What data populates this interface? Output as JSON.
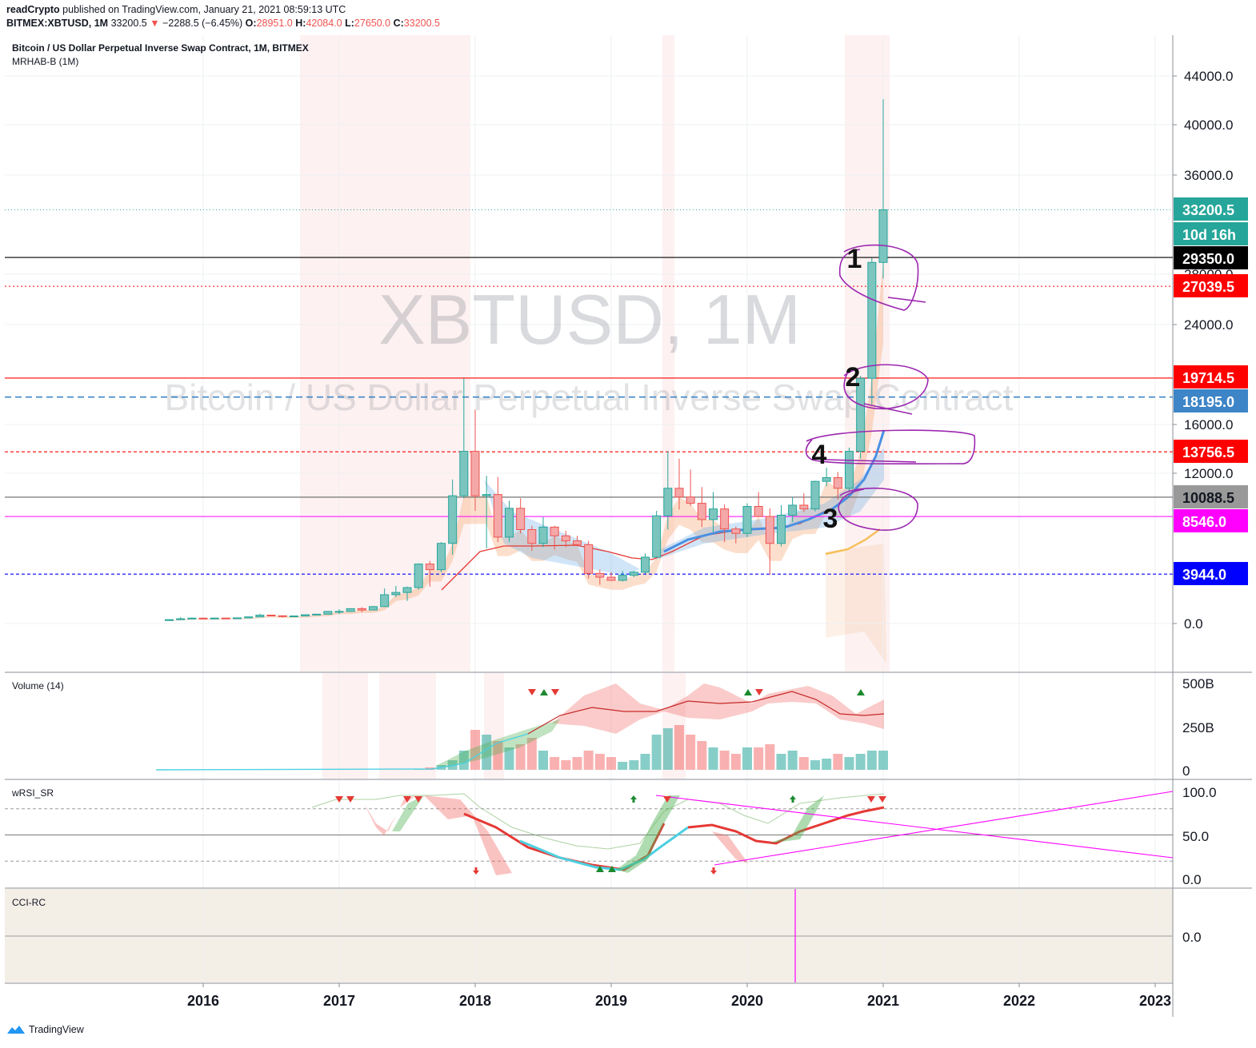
{
  "header": {
    "author": "readCrypto",
    "published_text": "published on TradingView.com, January 21, 2021 08:59:13 UTC",
    "symbol": "BITMEX:XBTUSD, 1M",
    "last": "33200.5",
    "change": "−2288.5 (−6.45%)",
    "o_label": "O:",
    "o": "28951.0",
    "h_label": "H:",
    "h": "42084.0",
    "l_label": "L:",
    "l": "27650.0",
    "c_label": "C:",
    "c": "33200.5"
  },
  "main_pane": {
    "title": "Bitcoin / US Dollar Perpetual Inverse Swap Contract, 1M, BITMEX",
    "indicator": "MRHAB-B (1M)",
    "watermark_big": "XBTUSD, 1M",
    "watermark_small": "Bitcoin / US Dollar Perpetual Inverse Swap Contract"
  },
  "price_axis": {
    "ticks": [
      "44000.0",
      "40000.0",
      "36000.0",
      "24000.0",
      "16000.0",
      "12000.0",
      "0.0"
    ],
    "hidden_tick": "28000.0"
  },
  "price_labels": [
    {
      "text": "33200.5",
      "color": "#26a69a",
      "text_color": "#ffffff"
    },
    {
      "text": "10d 16h",
      "color": "#26a69a",
      "text_color": "#ffffff"
    },
    {
      "text": "29350.0",
      "color": "#000000",
      "text_color": "#ffffff"
    },
    {
      "text": "27039.5",
      "color": "#ff0000",
      "text_color": "#ffffff"
    },
    {
      "text": "19714.5",
      "color": "#ff0000",
      "text_color": "#ffffff"
    },
    {
      "text": "18195.0",
      "color": "#3d85c6",
      "text_color": "#ffffff"
    },
    {
      "text": "13756.5",
      "color": "#ff0000",
      "text_color": "#ffffff"
    },
    {
      "text": "10088.5",
      "color": "#999999",
      "text_color": "#131722"
    },
    {
      "text": "8546.0",
      "color": "#ff00ff",
      "text_color": "#ffffff"
    },
    {
      "text": "3944.0",
      "color": "#0000ff",
      "text_color": "#ffffff"
    }
  ],
  "annotations": [
    "1",
    "2",
    "4",
    "3"
  ],
  "volume_pane": {
    "title": "Volume (14)",
    "ticks": [
      "500B",
      "250B",
      "0"
    ]
  },
  "rsi_pane": {
    "title": "wRSI_SR",
    "ticks": [
      "100.0",
      "50.0",
      "0.0"
    ]
  },
  "cci_pane": {
    "title": "CCI-RC",
    "ticks": [
      "0.0"
    ]
  },
  "time_axis": {
    "labels": [
      "2016",
      "2017",
      "2018",
      "2019",
      "2020",
      "2021",
      "2022",
      "2023"
    ]
  },
  "footer": {
    "brand": "TradingView"
  },
  "colors": {
    "up": "#26a69a",
    "down": "#ef5350",
    "up_fill": "#7cc5bf",
    "down_fill": "#f4a8a8",
    "annotation": "#9c27b0"
  },
  "chart_data": {
    "type": "candlestick",
    "title": "Bitcoin / US Dollar Perpetual Inverse Swap Contract, 1M, BITMEX",
    "symbol": "XBTUSD",
    "interval": "1M",
    "candles": [
      {
        "t": "2015-10",
        "o": 240,
        "h": 330,
        "l": 230,
        "c": 310
      },
      {
        "t": "2015-11",
        "o": 310,
        "h": 500,
        "l": 300,
        "c": 380
      },
      {
        "t": "2015-12",
        "o": 380,
        "h": 470,
        "l": 350,
        "c": 430
      },
      {
        "t": "2016-01",
        "o": 430,
        "h": 460,
        "l": 350,
        "c": 370
      },
      {
        "t": "2016-02",
        "o": 370,
        "h": 440,
        "l": 360,
        "c": 435
      },
      {
        "t": "2016-03",
        "o": 435,
        "h": 440,
        "l": 395,
        "c": 415
      },
      {
        "t": "2016-04",
        "o": 415,
        "h": 470,
        "l": 410,
        "c": 450
      },
      {
        "t": "2016-05",
        "o": 450,
        "h": 550,
        "l": 440,
        "c": 530
      },
      {
        "t": "2016-06",
        "o": 530,
        "h": 780,
        "l": 520,
        "c": 670
      },
      {
        "t": "2016-07",
        "o": 670,
        "h": 700,
        "l": 600,
        "c": 620
      },
      {
        "t": "2016-08",
        "o": 620,
        "h": 630,
        "l": 480,
        "c": 575
      },
      {
        "t": "2016-09",
        "o": 575,
        "h": 620,
        "l": 570,
        "c": 605
      },
      {
        "t": "2016-10",
        "o": 605,
        "h": 720,
        "l": 600,
        "c": 700
      },
      {
        "t": "2016-11",
        "o": 700,
        "h": 760,
        "l": 690,
        "c": 745
      },
      {
        "t": "2016-12",
        "o": 745,
        "h": 1000,
        "l": 740,
        "c": 965
      },
      {
        "t": "2017-01",
        "o": 965,
        "h": 1150,
        "l": 750,
        "c": 965
      },
      {
        "t": "2017-02",
        "o": 965,
        "h": 1200,
        "l": 920,
        "c": 1190
      },
      {
        "t": "2017-03",
        "o": 1190,
        "h": 1300,
        "l": 900,
        "c": 1080
      },
      {
        "t": "2017-04",
        "o": 1080,
        "h": 1400,
        "l": 1060,
        "c": 1350
      },
      {
        "t": "2017-05",
        "o": 1350,
        "h": 2800,
        "l": 1340,
        "c": 2300
      },
      {
        "t": "2017-06",
        "o": 2300,
        "h": 3000,
        "l": 2100,
        "c": 2480
      },
      {
        "t": "2017-07",
        "o": 2480,
        "h": 2950,
        "l": 1800,
        "c": 2870
      },
      {
        "t": "2017-08",
        "o": 2870,
        "h": 4800,
        "l": 2700,
        "c": 4750
      },
      {
        "t": "2017-09",
        "o": 4750,
        "h": 5000,
        "l": 2950,
        "c": 4300
      },
      {
        "t": "2017-10",
        "o": 4300,
        "h": 6500,
        "l": 4100,
        "c": 6400
      },
      {
        "t": "2017-11",
        "o": 6400,
        "h": 11500,
        "l": 5500,
        "c": 10200
      },
      {
        "t": "2017-12",
        "o": 10200,
        "h": 19700,
        "l": 10000,
        "c": 13800
      },
      {
        "t": "2018-01",
        "o": 13800,
        "h": 17200,
        "l": 9000,
        "c": 10200
      },
      {
        "t": "2018-02",
        "o": 10200,
        "h": 11800,
        "l": 6000,
        "c": 10300
      },
      {
        "t": "2018-03",
        "o": 10300,
        "h": 11700,
        "l": 6500,
        "c": 6900
      },
      {
        "t": "2018-04",
        "o": 6900,
        "h": 9800,
        "l": 6500,
        "c": 9200
      },
      {
        "t": "2018-05",
        "o": 9200,
        "h": 10000,
        "l": 7200,
        "c": 7500
      },
      {
        "t": "2018-06",
        "o": 7500,
        "h": 7800,
        "l": 5800,
        "c": 6400
      },
      {
        "t": "2018-07",
        "o": 6400,
        "h": 8500,
        "l": 6100,
        "c": 7700
      },
      {
        "t": "2018-08",
        "o": 7700,
        "h": 7800,
        "l": 5900,
        "c": 7000
      },
      {
        "t": "2018-09",
        "o": 7000,
        "h": 7400,
        "l": 6100,
        "c": 6600
      },
      {
        "t": "2018-10",
        "o": 6600,
        "h": 7000,
        "l": 6200,
        "c": 6300
      },
      {
        "t": "2018-11",
        "o": 6300,
        "h": 6600,
        "l": 3600,
        "c": 4000
      },
      {
        "t": "2018-12",
        "o": 4000,
        "h": 4300,
        "l": 3100,
        "c": 3700
      },
      {
        "t": "2019-01",
        "o": 3700,
        "h": 4100,
        "l": 3400,
        "c": 3450
      },
      {
        "t": "2019-02",
        "o": 3450,
        "h": 4200,
        "l": 3350,
        "c": 3850
      },
      {
        "t": "2019-03",
        "o": 3850,
        "h": 4200,
        "l": 3700,
        "c": 4100
      },
      {
        "t": "2019-04",
        "o": 4100,
        "h": 5600,
        "l": 4000,
        "c": 5300
      },
      {
        "t": "2019-05",
        "o": 5300,
        "h": 9000,
        "l": 5300,
        "c": 8600
      },
      {
        "t": "2019-06",
        "o": 8600,
        "h": 13800,
        "l": 7500,
        "c": 10800
      },
      {
        "t": "2019-07",
        "o": 10800,
        "h": 13200,
        "l": 9100,
        "c": 10100
      },
      {
        "t": "2019-08",
        "o": 10100,
        "h": 12300,
        "l": 9400,
        "c": 9600
      },
      {
        "t": "2019-09",
        "o": 9600,
        "h": 10900,
        "l": 7700,
        "c": 8300
      },
      {
        "t": "2019-10",
        "o": 8300,
        "h": 10500,
        "l": 7300,
        "c": 9150
      },
      {
        "t": "2019-11",
        "o": 9150,
        "h": 9500,
        "l": 6500,
        "c": 7550
      },
      {
        "t": "2019-12",
        "o": 7550,
        "h": 7750,
        "l": 6400,
        "c": 7200
      },
      {
        "t": "2020-01",
        "o": 7200,
        "h": 9600,
        "l": 6900,
        "c": 9350
      },
      {
        "t": "2020-02",
        "o": 9350,
        "h": 10500,
        "l": 8500,
        "c": 8550
      },
      {
        "t": "2020-03",
        "o": 8550,
        "h": 9200,
        "l": 3900,
        "c": 6400
      },
      {
        "t": "2020-04",
        "o": 6400,
        "h": 9450,
        "l": 6150,
        "c": 8650
      },
      {
        "t": "2020-05",
        "o": 8650,
        "h": 10100,
        "l": 8100,
        "c": 9450
      },
      {
        "t": "2020-06",
        "o": 9450,
        "h": 10400,
        "l": 8900,
        "c": 9150
      },
      {
        "t": "2020-07",
        "o": 9150,
        "h": 11400,
        "l": 8950,
        "c": 11350
      },
      {
        "t": "2020-08",
        "o": 11350,
        "h": 12450,
        "l": 10950,
        "c": 11650
      },
      {
        "t": "2020-09",
        "o": 11650,
        "h": 12100,
        "l": 9900,
        "c": 10800
      },
      {
        "t": "2020-10",
        "o": 10800,
        "h": 14100,
        "l": 10500,
        "c": 13800
      },
      {
        "t": "2020-11",
        "o": 13800,
        "h": 19900,
        "l": 13200,
        "c": 19700
      },
      {
        "t": "2020-12",
        "o": 19700,
        "h": 29300,
        "l": 17600,
        "c": 28950
      },
      {
        "t": "2021-01",
        "o": 28951,
        "h": 42084,
        "l": 27650,
        "c": 33200.5
      }
    ],
    "horizontal_levels": [
      29350.0,
      27039.5,
      19714.5,
      18195.0,
      13756.5,
      10088.5,
      8546.0,
      3944.0
    ],
    "y_axis_ticks": [
      0,
      12000,
      16000,
      24000,
      28000,
      36000,
      40000,
      44000
    ]
  }
}
